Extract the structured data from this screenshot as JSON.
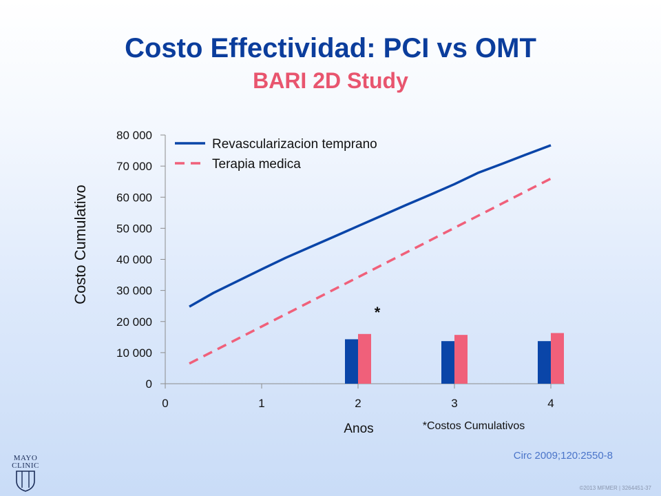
{
  "slide": {
    "title": "Costo Effectividad:  PCI vs OMT",
    "subtitle": "BARI 2D Study",
    "citation": "Circ 2009;120:2550-8",
    "copyright": "©2013 MFMER  |  3264451-37",
    "logo_line1": "MAYO",
    "logo_line2": "CLINIC"
  },
  "colors": {
    "revasc": "#0a45a8",
    "medica": "#f0607a",
    "title": "#0b3d9c",
    "subtitle": "#e8556e"
  },
  "chart_data": {
    "type": "line",
    "xlabel": "Anos",
    "ylabel": "Costo Cumulativo",
    "xlim": [
      0,
      4
    ],
    "ylim": [
      0,
      80000
    ],
    "x_ticks": [
      0,
      1,
      2,
      3,
      4
    ],
    "y_ticks": [
      0,
      10000,
      20000,
      30000,
      40000,
      50000,
      60000,
      70000,
      80000
    ],
    "y_tick_labels": [
      "0",
      "10 000",
      "20 000",
      "30 000",
      "40 000",
      "50 000",
      "60 000",
      "70 000",
      "80 000"
    ],
    "grid": false,
    "legend_position": "top-left",
    "footnote": "*Costos Cumulativos",
    "significance_marker": {
      "label": "*",
      "x": 2.2,
      "y": 23000
    },
    "series": [
      {
        "name": "Revascularizacion temprano",
        "style": "solid",
        "x": [
          0.25,
          0.5,
          0.75,
          1.0,
          1.25,
          1.5,
          1.75,
          2.0,
          2.25,
          2.5,
          2.75,
          3.0,
          3.25,
          3.5,
          3.75,
          4.0
        ],
        "y": [
          24800,
          29200,
          33000,
          36800,
          40500,
          43900,
          47300,
          50700,
          54100,
          57500,
          60800,
          64200,
          67900,
          70800,
          73800,
          76700
        ]
      },
      {
        "name": "Terapia medica",
        "style": "dashed",
        "x": [
          0.25,
          4.0
        ],
        "y": [
          6500,
          66000
        ]
      }
    ],
    "bars": {
      "categories": [
        2,
        3,
        4
      ],
      "series": [
        {
          "name": "Revascularizacion temprano",
          "values": [
            14300,
            13700,
            13700
          ]
        },
        {
          "name": "Terapia medica",
          "values": [
            16000,
            15700,
            16300
          ]
        }
      ]
    }
  }
}
